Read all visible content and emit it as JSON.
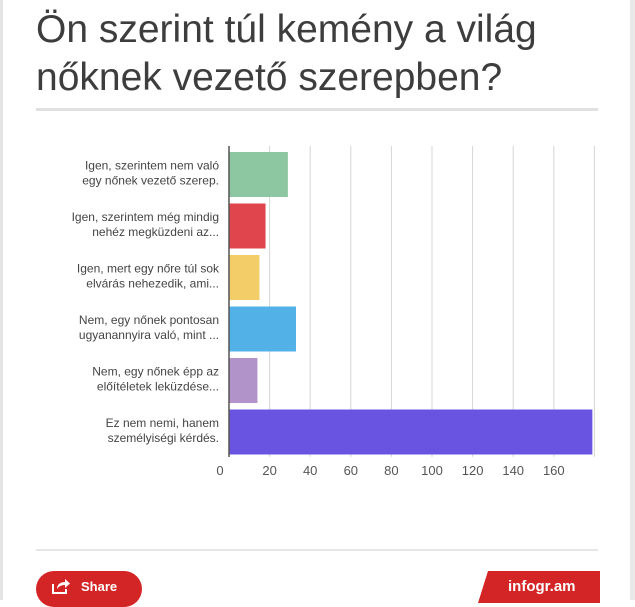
{
  "title": "Ön szerint túl kemény a világ nőknek vezető szerepben?",
  "footer": {
    "share_label": "Share",
    "share_icon": "share-icon",
    "brand": "infogr.am",
    "accent_color": "#d42526"
  },
  "chart_data": {
    "type": "bar",
    "orientation": "horizontal",
    "grid": true,
    "xlim": [
      0,
      180
    ],
    "ticks": [
      0,
      20,
      40,
      60,
      80,
      100,
      120,
      140,
      160
    ],
    "categories": [
      [
        "Igen, szerintem nem való",
        "egy nőnek vezető szerep."
      ],
      [
        "Igen, szerintem még mindig",
        "nehéz megküzdeni az..."
      ],
      [
        "Igen, mert egy nőre túl sok",
        "elvárás nehezedik, ami..."
      ],
      [
        "Nem, egy nőnek pontosan",
        "ugyanannyira való, mint ..."
      ],
      [
        "Nem, egy nőnek épp az",
        "előítéletek leküzdése..."
      ],
      [
        "Ez nem nemi, hanem",
        "személyiségi kérdés."
      ]
    ],
    "values": [
      29,
      18,
      15,
      33,
      14,
      179
    ],
    "colors": [
      "#8cc7a2",
      "#e0454d",
      "#f2cd68",
      "#52b1e6",
      "#b193c9",
      "#6954e1"
    ]
  }
}
